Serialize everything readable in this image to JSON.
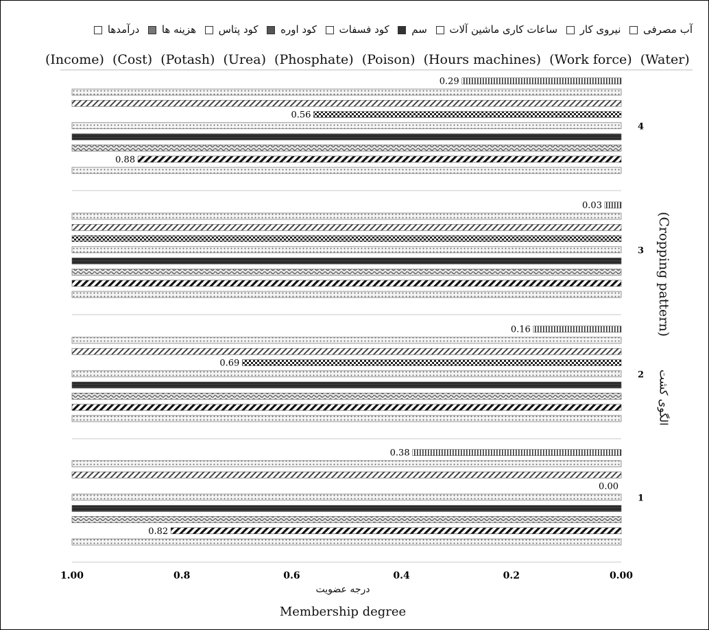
{
  "legend_fa": [
    "آب مصرفی",
    "نیروی کار",
    "ساعات کاری ماشین آلات",
    "سم",
    "کود فسفات",
    "کود اوره",
    "کود پتاس",
    "هزینه ها",
    "درآمدها"
  ],
  "legend_en": [
    "(Income)",
    "(Cost)",
    "(Potash)",
    "(Urea)",
    "(Phosphate)",
    "(Poison)",
    "(Hours machines)",
    "(Work force)",
    "(Water)"
  ],
  "axis": {
    "ylabel_en": "(Cropping pattern)",
    "ylabel_fa": "الگوی کشت",
    "xlabel_fa": "درجه عضویت",
    "xlabel_en": "Membership degree"
  },
  "chart_data": {
    "type": "bar",
    "orientation": "horizontal",
    "x_reversed": true,
    "xlim": [
      0,
      1
    ],
    "xticks": [
      "1.00",
      "0.8",
      "0.6",
      "0.4",
      "0.2",
      "0.00"
    ],
    "categories": [
      "1",
      "2",
      "3",
      "4"
    ],
    "series": [
      {
        "name": "Income",
        "values": [
          0.38,
          0.16,
          0.03,
          0.29
        ]
      },
      {
        "name": "Cost",
        "values": [
          1.0,
          1.0,
          1.0,
          1.0
        ]
      },
      {
        "name": "Potash",
        "values": [
          1.0,
          1.0,
          1.0,
          1.0
        ]
      },
      {
        "name": "Urea",
        "values": [
          0.0,
          0.69,
          1.0,
          0.56
        ]
      },
      {
        "name": "Phosphate",
        "values": [
          1.0,
          1.0,
          1.0,
          1.0
        ]
      },
      {
        "name": "Poison",
        "values": [
          1.0,
          1.0,
          1.0,
          1.0
        ]
      },
      {
        "name": "Hours machines",
        "values": [
          1.0,
          1.0,
          1.0,
          1.0
        ]
      },
      {
        "name": "Work force",
        "values": [
          0.82,
          1.0,
          1.0,
          0.88
        ]
      },
      {
        "name": "Water",
        "values": [
          1.0,
          1.0,
          1.0,
          1.0
        ]
      }
    ],
    "data_labels": [
      {
        "category": "4",
        "series": "Income",
        "text": "0.29"
      },
      {
        "category": "4",
        "series": "Urea",
        "text": "0.56"
      },
      {
        "category": "4",
        "series": "Work force",
        "text": "0.88"
      },
      {
        "category": "3",
        "series": "Income",
        "text": "0.03"
      },
      {
        "category": "2",
        "series": "Income",
        "text": "0.16"
      },
      {
        "category": "2",
        "series": "Urea",
        "text": "0.69"
      },
      {
        "category": "1",
        "series": "Income",
        "text": "0.38"
      },
      {
        "category": "1",
        "series": "Urea",
        "text": "0.00"
      },
      {
        "category": "1",
        "series": "Work force",
        "text": "0.82"
      }
    ],
    "patterns": [
      "pat-vlines",
      "pat-dots",
      "pat-diag",
      "pat-checker",
      "pat-dots",
      "pat-solid",
      "pat-wave",
      "pat-hatch",
      "pat-dots"
    ]
  }
}
